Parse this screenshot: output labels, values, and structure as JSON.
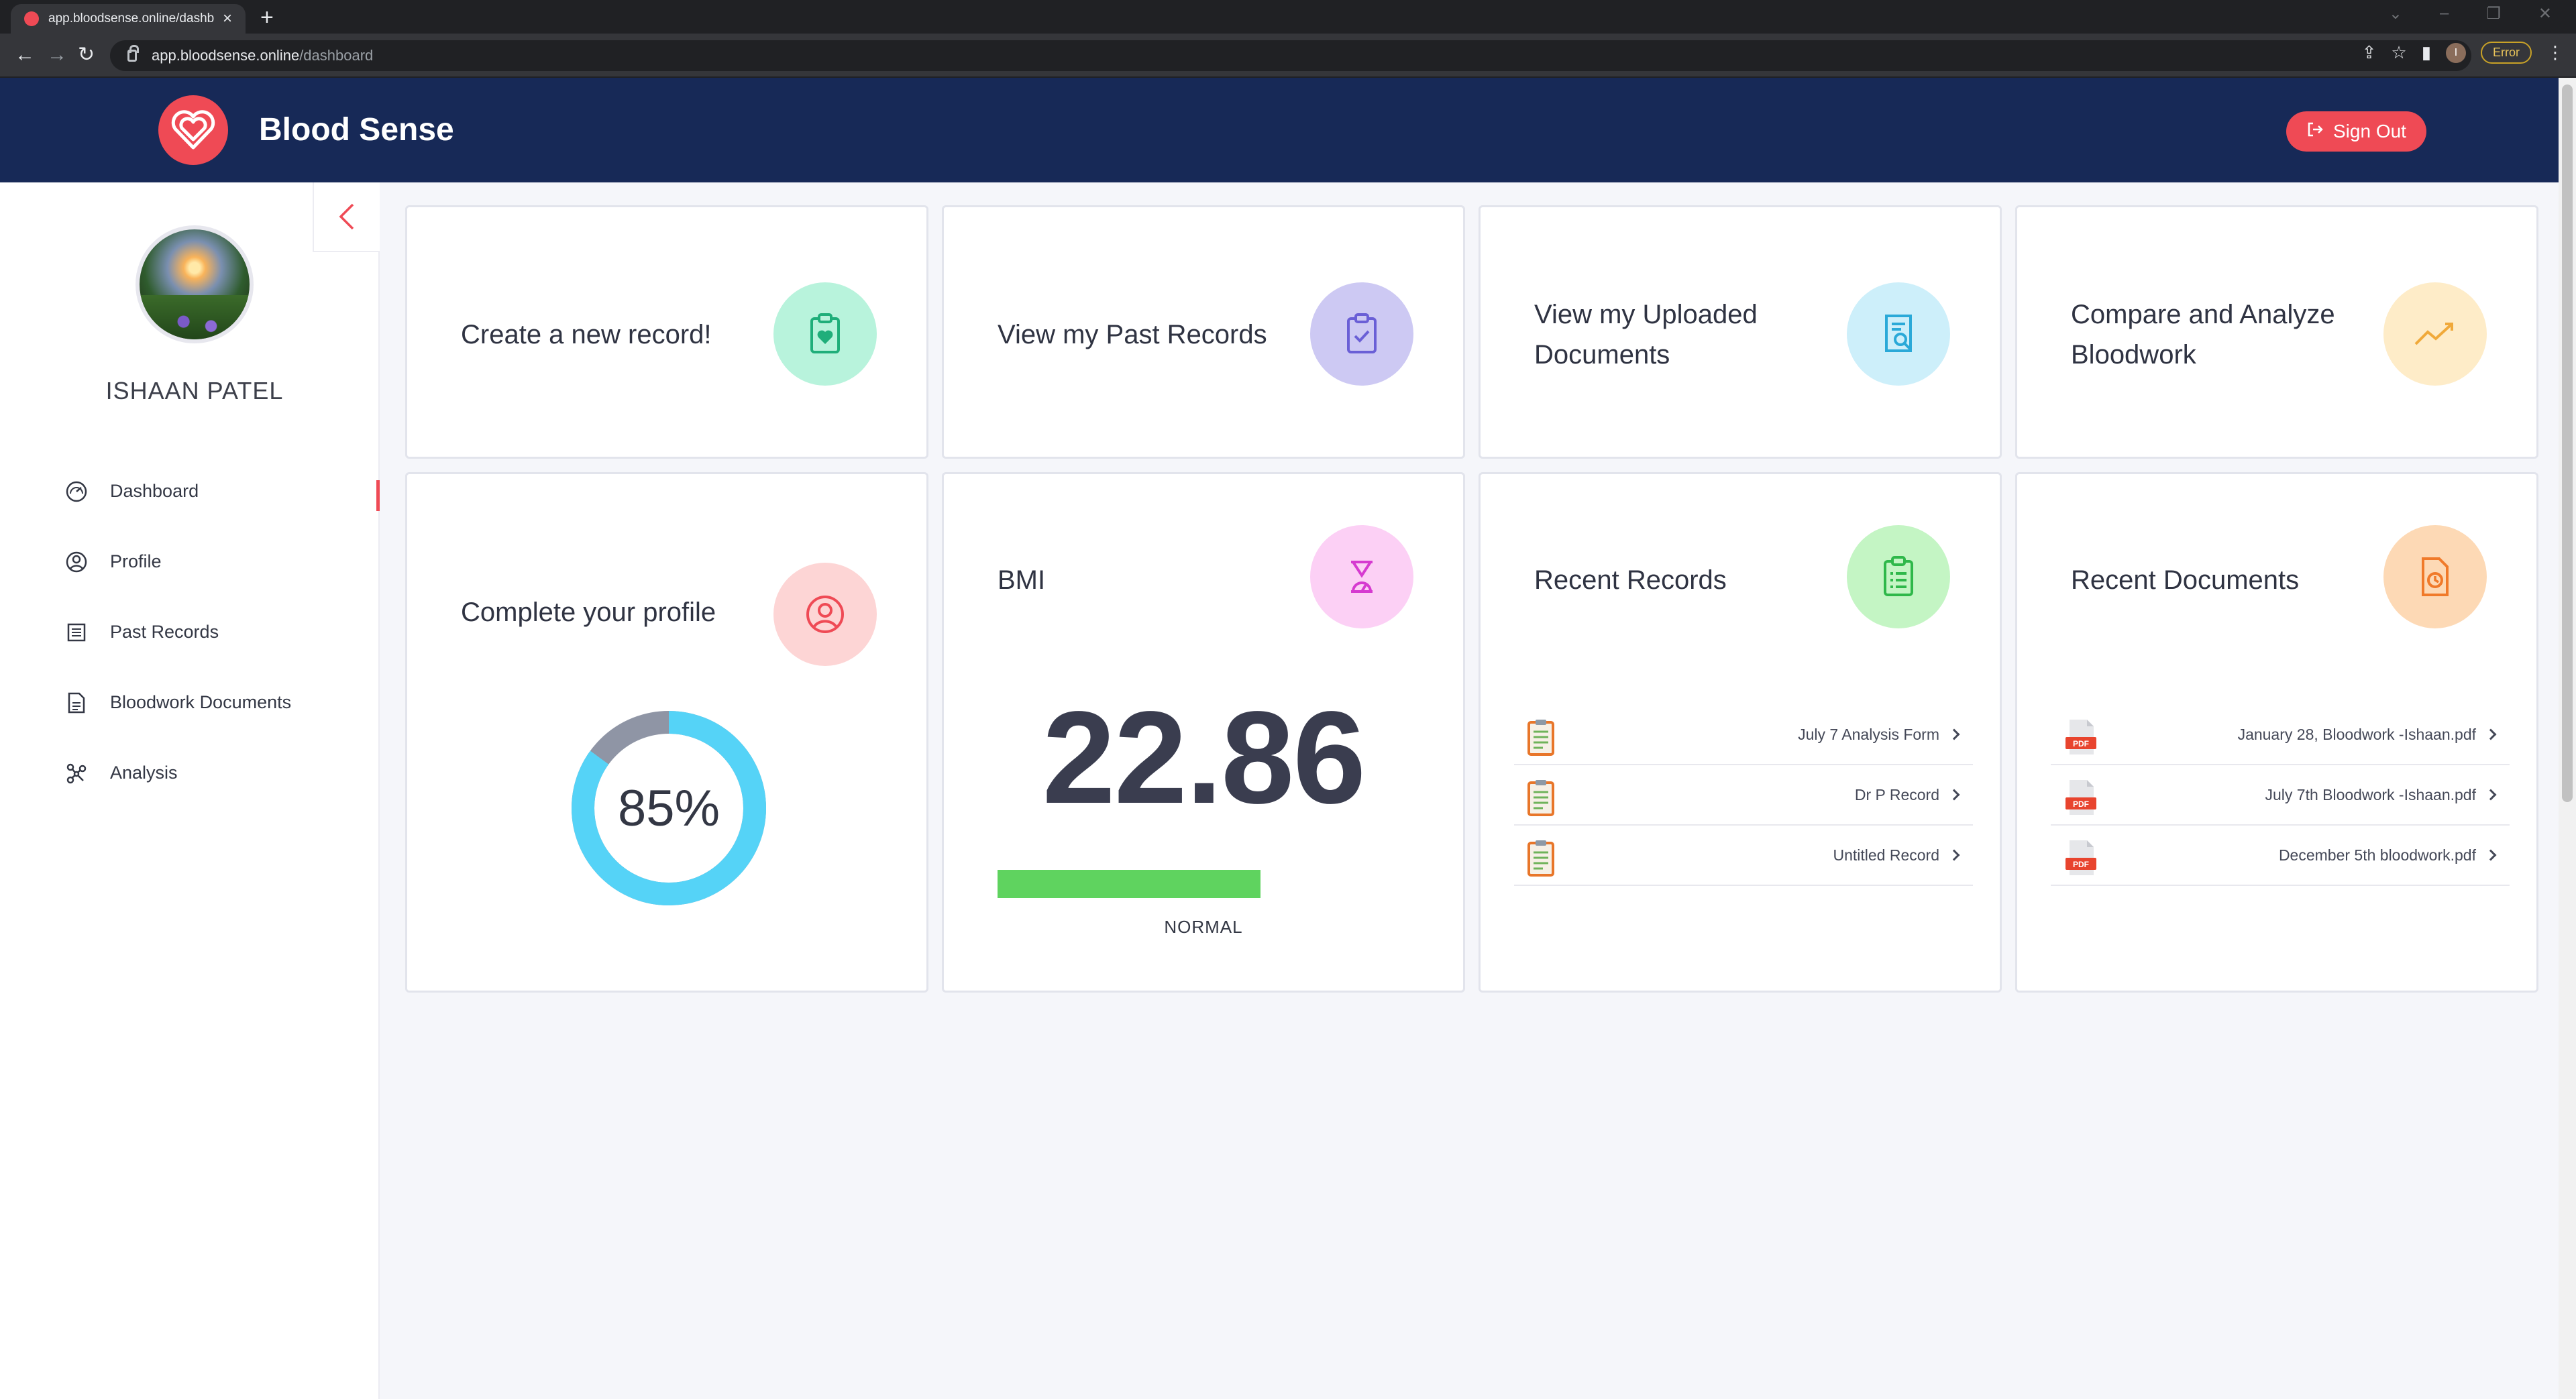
{
  "browser": {
    "tab_title": "app.bloodsense.online/dashboard",
    "url_host": "app.bloodsense.online",
    "url_path": "/dashboard",
    "profile_initial": "I",
    "error_label": "Error"
  },
  "header": {
    "brand": "Blood Sense",
    "sign_out": "Sign Out"
  },
  "sidebar": {
    "user_name": "ISHAAN PATEL",
    "items": [
      {
        "label": "Dashboard",
        "icon": "dashboard-gauge-icon",
        "active": true
      },
      {
        "label": "Profile",
        "icon": "user-circle-icon"
      },
      {
        "label": "Past Records",
        "icon": "list-icon"
      },
      {
        "label": "Bloodwork Documents",
        "icon": "document-icon"
      },
      {
        "label": "Analysis",
        "icon": "network-icon"
      }
    ]
  },
  "cards": {
    "create_record": {
      "title": "Create a new record!",
      "color": "#b8f3dc",
      "icon_color": "#1fae7a"
    },
    "past_records": {
      "title": "View my Past Records",
      "color": "#cdc9f3",
      "icon_color": "#6a5fd6"
    },
    "uploaded_docs": {
      "title_line1": "View my Uploaded",
      "title_line2": "Documents",
      "color": "#cdeffa",
      "icon_color": "#2aa9d8"
    },
    "compare": {
      "title_line1": "Compare and Analyze",
      "title_line2": "Bloodwork",
      "color": "#feecc8",
      "icon_color": "#f0a93a"
    },
    "profile": {
      "title": "Complete your profile",
      "percent": "85%",
      "fraction": 0.85,
      "ring_color": "#55d3f7",
      "remainder_color": "#8f95a5"
    },
    "bmi": {
      "title": "BMI",
      "value": "22.86",
      "status": "NORMAL",
      "bar_color": "#5fd35f"
    },
    "recent_records": {
      "title": "Recent Records",
      "items": [
        {
          "label": "July 7 Analysis Form"
        },
        {
          "label": "Dr P Record"
        },
        {
          "label": "Untitled Record"
        }
      ]
    },
    "recent_documents": {
      "title": "Recent Documents",
      "items": [
        {
          "label": "January 28, Bloodwork -Ishaan.pdf"
        },
        {
          "label": "July 7th Bloodwork -Ishaan.pdf"
        },
        {
          "label": "December 5th bloodwork.pdf"
        }
      ]
    }
  }
}
